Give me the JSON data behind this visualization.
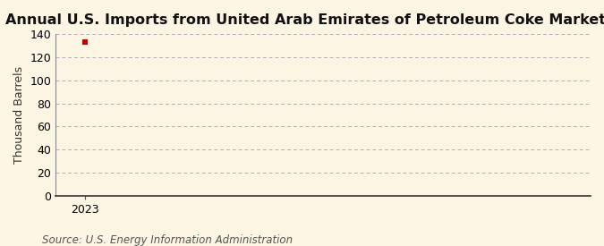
{
  "title": "Annual U.S. Imports from United Arab Emirates of Petroleum Coke Marketable",
  "ylabel": "Thousand Barrels",
  "source_text": "Source: U.S. Energy Information Administration",
  "x_data": [
    2023
  ],
  "y_data": [
    133
  ],
  "xlim": [
    2022.6,
    2030
  ],
  "ylim": [
    0,
    140
  ],
  "yticks": [
    0,
    20,
    40,
    60,
    80,
    100,
    120,
    140
  ],
  "xticks": [
    2023
  ],
  "data_color": "#cc0000",
  "grid_color": "#b0b0b0",
  "background_color": "#fdf5e4",
  "title_fontsize": 11.5,
  "title_fontweight": "bold",
  "label_fontsize": 9,
  "tick_fontsize": 9,
  "source_fontsize": 8.5
}
